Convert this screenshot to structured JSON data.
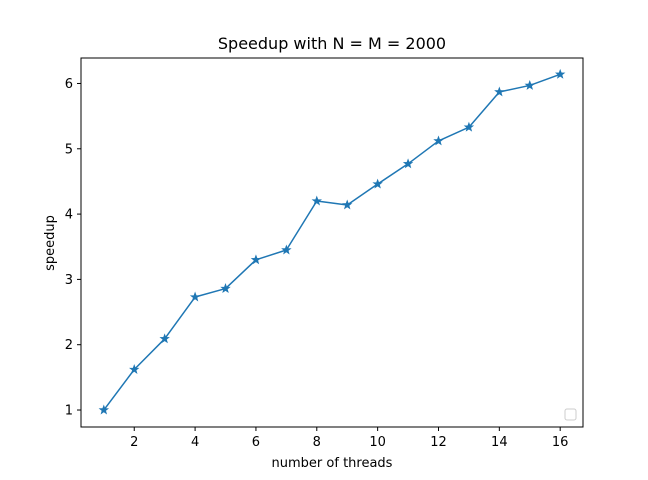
{
  "chart_data": {
    "type": "line",
    "title": "Speedup with N = M = 2000",
    "xlabel": "number of threads",
    "ylabel": "speedup",
    "xlim": [
      0.25,
      16.75
    ],
    "ylim": [
      0.74,
      6.39
    ],
    "x_ticks": [
      2,
      4,
      6,
      8,
      10,
      12,
      14,
      16
    ],
    "y_ticks": [
      1,
      2,
      3,
      4,
      5,
      6
    ],
    "grid": false,
    "legend": "lower right",
    "series": [
      {
        "marker": "star",
        "color": "#1f77b4",
        "x": [
          1,
          2,
          3,
          4,
          5,
          6,
          7,
          8,
          9,
          10,
          11,
          12,
          13,
          14,
          15,
          16
        ],
        "y": [
          1.0,
          1.62,
          2.09,
          2.73,
          2.86,
          3.3,
          3.45,
          4.2,
          4.14,
          4.46,
          4.77,
          5.12,
          5.33,
          5.87,
          5.97,
          6.14
        ]
      }
    ]
  }
}
